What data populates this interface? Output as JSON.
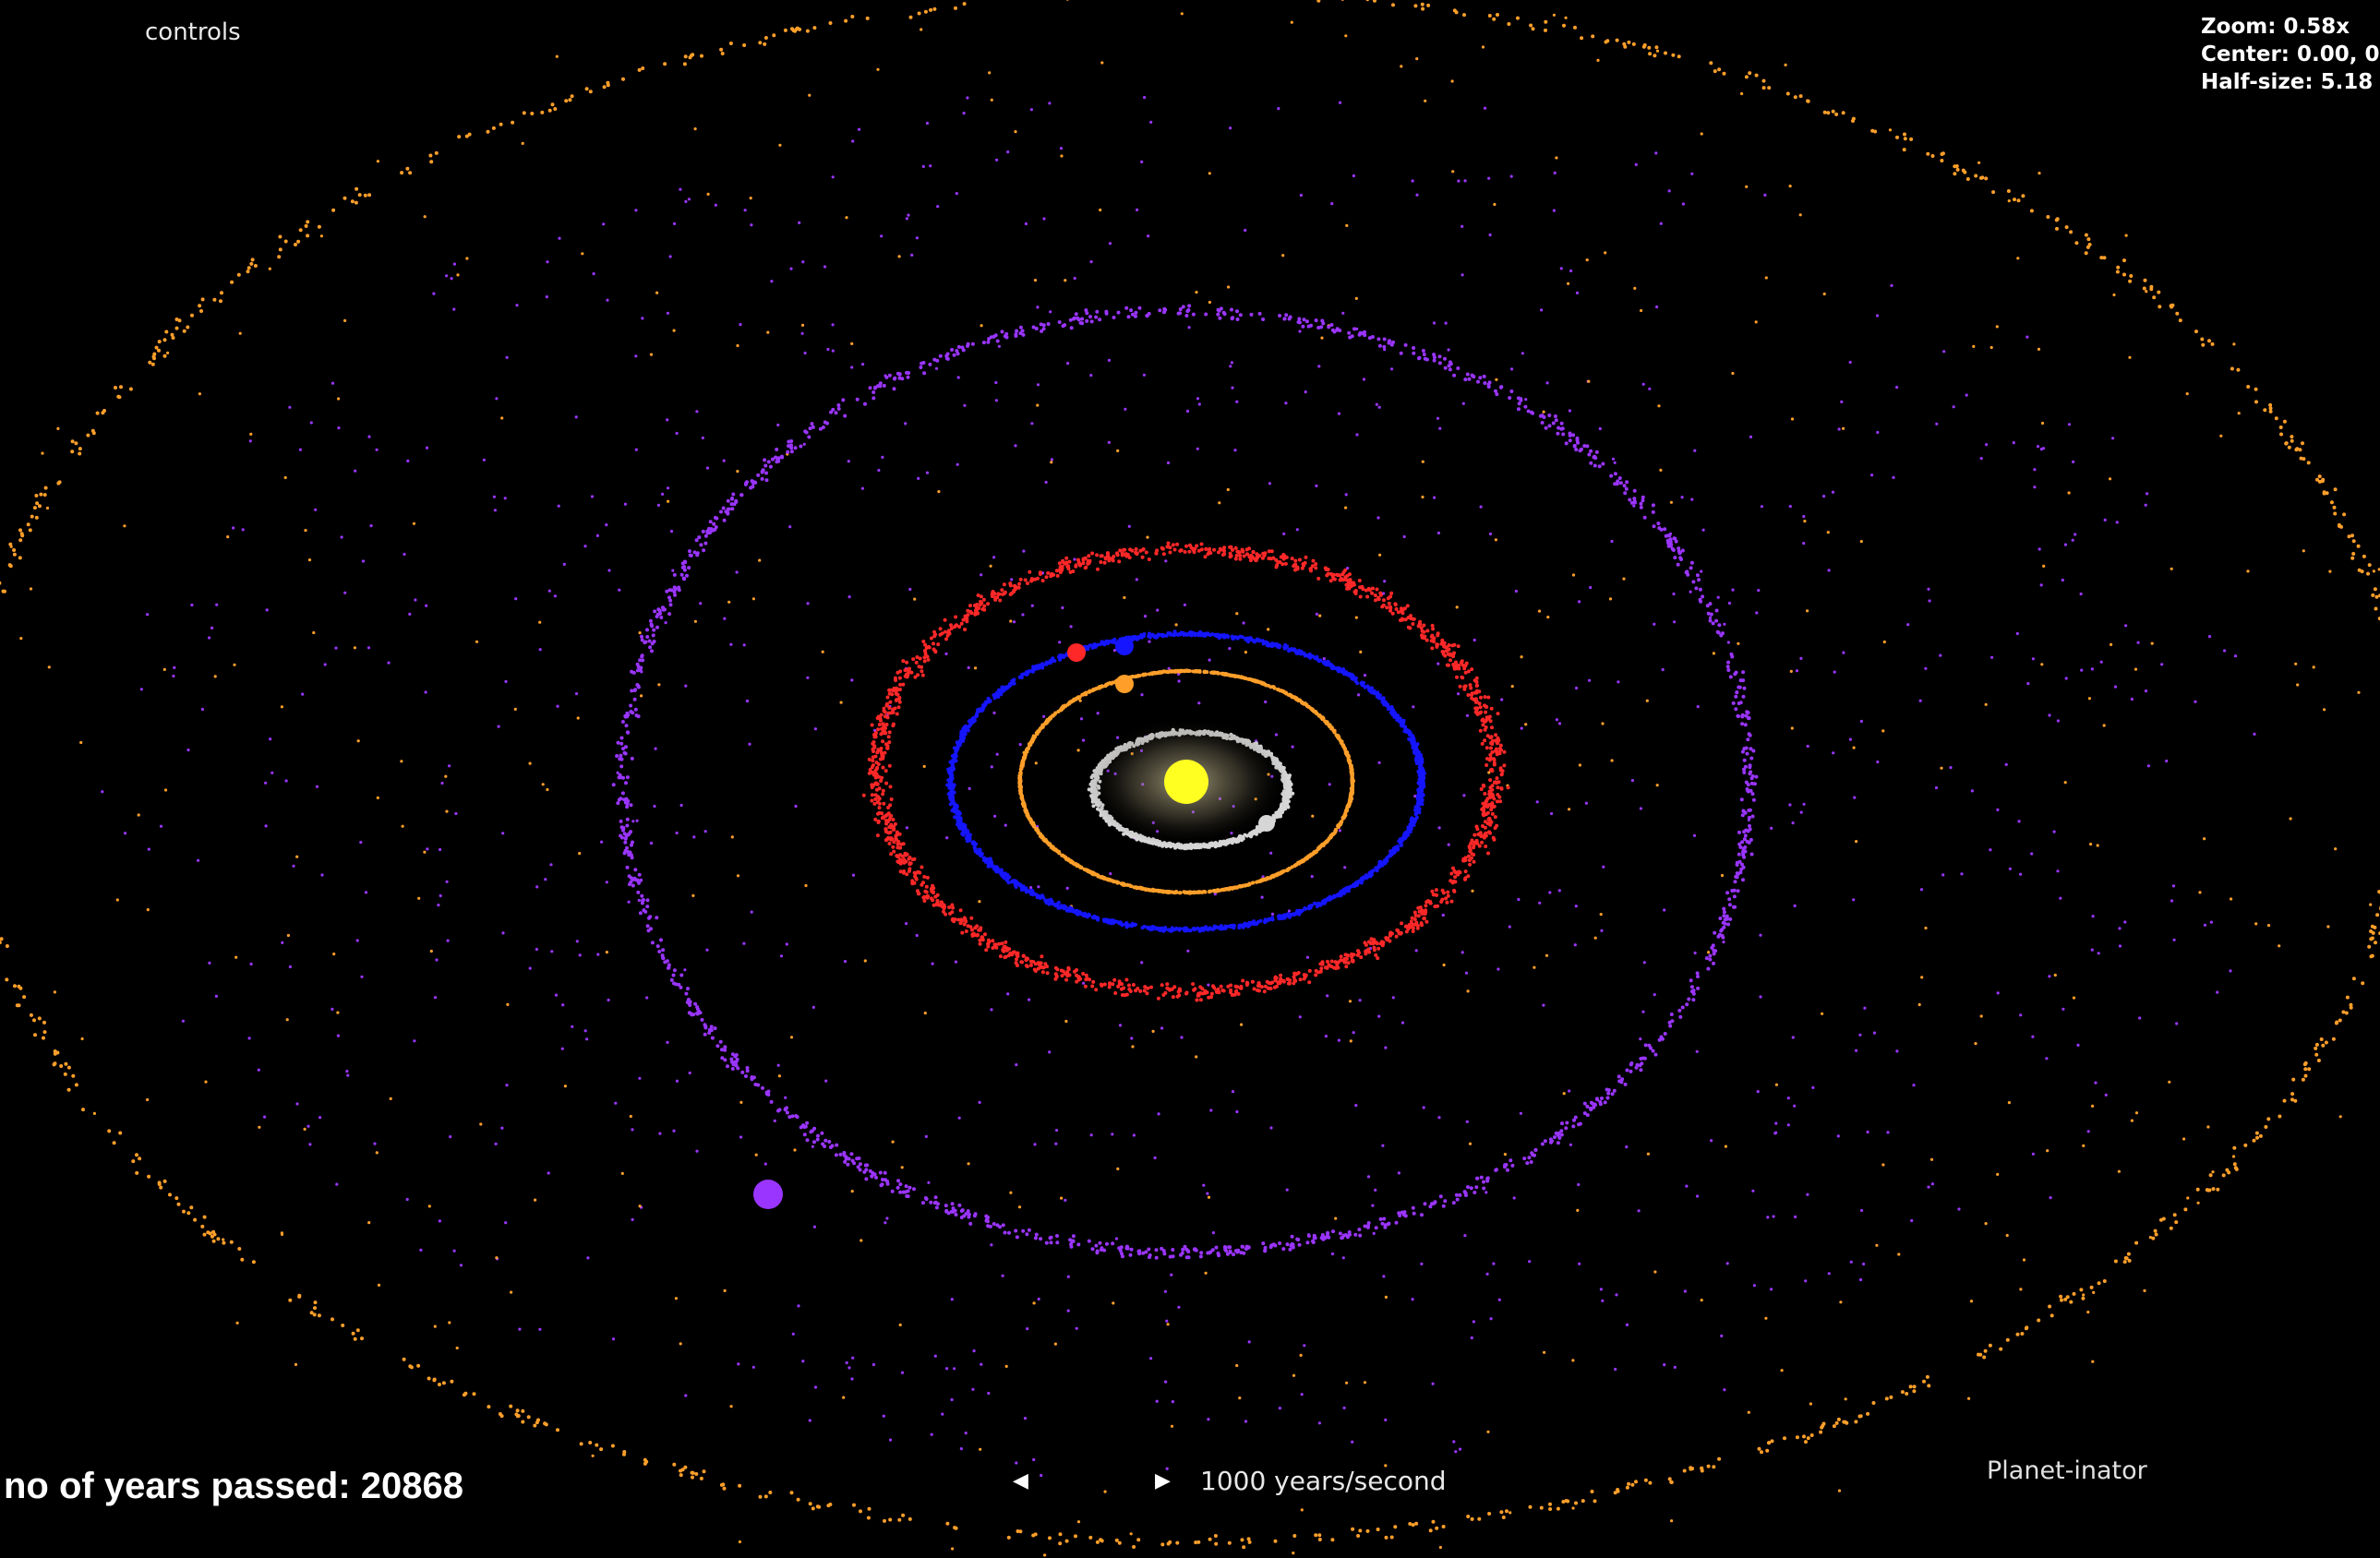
{
  "hud": {
    "controls_label": "controls",
    "zoom_text": "Zoom: 0.58x",
    "center_text": "Center: 0.00, 0",
    "halfsize_text": "Half-size: 5.18",
    "years_text": "no of years passed: 20868",
    "speed_prev_icon": "triangle-left-icon",
    "speed_next_icon": "triangle-right-icon",
    "speed_prev_glyph": "◀",
    "speed_next_glyph": "▶",
    "speed_text": "1000 years/second",
    "app_name": "Planet-inator"
  },
  "colors": {
    "background": "#000000",
    "sun": "#ffff22",
    "sun_glow": "#cfc49a",
    "mercury": "#d6d6d6",
    "venus": "#ff9f2a",
    "earth": "#1515ff",
    "mars": "#ff2828",
    "jupiter": "#9a35ff",
    "outer": "#ff9f2a"
  },
  "bodies": [
    "sun",
    "mercury",
    "venus",
    "earth",
    "mars",
    "jupiter",
    "outer-ring"
  ]
}
